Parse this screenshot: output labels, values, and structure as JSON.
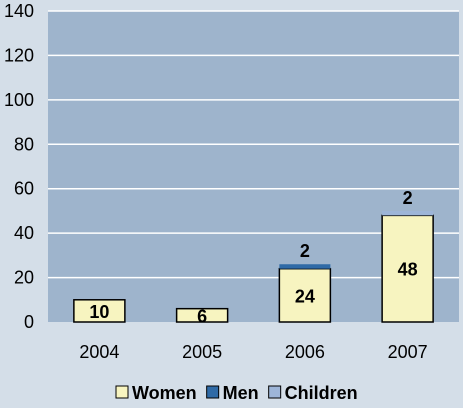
{
  "chart_data": {
    "type": "bar",
    "stacked": true,
    "categories": [
      "2004",
      "2005",
      "2006",
      "2007"
    ],
    "series": [
      {
        "name": "Women",
        "values": [
          10,
          6,
          24,
          48
        ],
        "color": "#f7f4c0"
      },
      {
        "name": "Men",
        "values": [
          0,
          0,
          2,
          0
        ],
        "color": "#2f6aa6"
      },
      {
        "name": "Children",
        "values": [
          0,
          0,
          0,
          2
        ],
        "color": "#9db5d8"
      }
    ],
    "data_labels": [
      {
        "category": "2004",
        "series": "Women",
        "text": "10"
      },
      {
        "category": "2005",
        "series": "Women",
        "text": "6"
      },
      {
        "category": "2006",
        "series": "Women",
        "text": "24"
      },
      {
        "category": "2006",
        "series": "Men",
        "text": "2"
      },
      {
        "category": "2007",
        "series": "Women",
        "text": "48"
      },
      {
        "category": "2007",
        "series": "Children",
        "text": "2"
      }
    ],
    "ylim": [
      0,
      140
    ],
    "yticks": [
      "0",
      "20",
      "40",
      "60",
      "80",
      "100",
      "120",
      "140"
    ],
    "grid": true,
    "legend_position": "bottom",
    "title": "",
    "xlabel": "",
    "ylabel": "",
    "colors": {
      "page_background": "#d4dee8",
      "plot_background": "#9eb4cc",
      "gridline": "#ffffff",
      "bar_outline": "#000000"
    }
  }
}
